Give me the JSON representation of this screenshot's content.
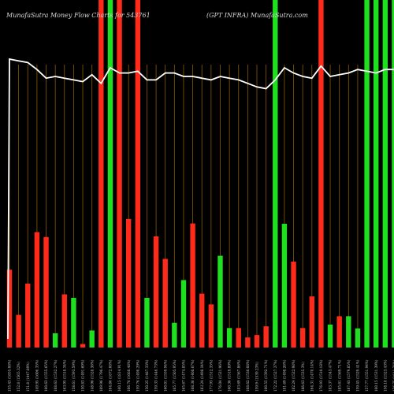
{
  "chart_data": {
    "type": "bar",
    "title": "MunafaSutra  Money Flow  Charts for 543761",
    "subtitle": "(GPT INFRA) MunafaSutra.com",
    "colors": {
      "background": "#000000",
      "up": "#1ee01e",
      "down": "#ff2a1a",
      "gridline": "#8a5a00",
      "line": "#ffffff"
    },
    "grid": true,
    "x_axis_position": "bottom",
    "categories": [
      "155.43 (1855.08%)",
      "152.8 (1565.32%)",
      "151.8 (1447.89%)",
      "149.95 (1606.35%)",
      "160.63 (1555.65%)",
      "168.63 (1532.27%)",
      "163.95 (1518.34%)",
      "158.61 (1593.59%)",
      "150.83 (1491.69%)",
      "148.96 (1528.38%)",
      "169.96 (1796.47%)",
      "164.86 (1872.08%)",
      "160.15 (1814.91%)",
      "166.76 (1668.48%)",
      "159.76 (1498.29%)",
      "150.25 (1487.33%)",
      "159.33 (1446.73%)",
      "160.01 (1559.94%)",
      "165.77 (1505.95%)",
      "165.67 (1474.85%)",
      "168.36 (1408.67%)",
      "183.24 (1498.34%)",
      "177.93 (1512.35%)",
      "176.04 (1521.96%)",
      "160.36 (1519.89%)",
      "183.69 (1567.86%)",
      "168.62 (1536.68%)",
      "159.9 (1539.23%)",
      "160.55 (1592.71%)",
      "172.22 (1527.37%)",
      "181.69 (1498.26%)",
      "182.24 (1522.98%)",
      "186.63 (1535.3%)",
      "164.31 (1470.14%)",
      "176.93 (1510.18%)",
      "183.37 (1543.47%)",
      "185.61 (1569.71%)",
      "187.43 (1579.85%)",
      "159.45 (1529.41%)",
      "157.77 (1551.94%)",
      "160.15 (1531.39%)",
      "158.18 (1523.43%)",
      "176.75 (1611.76%)"
    ],
    "volume": [
      224,
      94,
      184,
      332,
      318,
      41,
      153,
      143,
      10,
      49,
      1000,
      1000,
      1000,
      370,
      1000,
      143,
      320,
      255,
      71,
      194,
      357,
      155,
      124,
      264,
      56,
      56,
      29,
      36,
      61,
      1000,
      356,
      247,
      56,
      147,
      1000,
      66,
      90,
      90,
      55,
      1000,
      1000,
      1000,
      1000
    ],
    "direction": [
      "down",
      "down",
      "down",
      "down",
      "down",
      "up",
      "down",
      "up",
      "down",
      "up",
      "down",
      "up",
      "down",
      "down",
      "down",
      "up",
      "down",
      "down",
      "up",
      "up",
      "down",
      "down",
      "down",
      "up",
      "up",
      "down",
      "down",
      "down",
      "down",
      "up",
      "up",
      "down",
      "down",
      "down",
      "down",
      "up",
      "down",
      "up",
      "up",
      "up",
      "up",
      "up",
      "up"
    ],
    "line_values": [
      83,
      82.5,
      82,
      80,
      77.5,
      78,
      77.5,
      77,
      76.5,
      78.5,
      76,
      80.5,
      79,
      79,
      79.5,
      77,
      77,
      79,
      79,
      78,
      78,
      77.5,
      77,
      78,
      77.5,
      77,
      76,
      75,
      74.5,
      77,
      80.5,
      79,
      78,
      77.5,
      81,
      78,
      78.5,
      79,
      80,
      79.5,
      79,
      80,
      80
    ]
  }
}
